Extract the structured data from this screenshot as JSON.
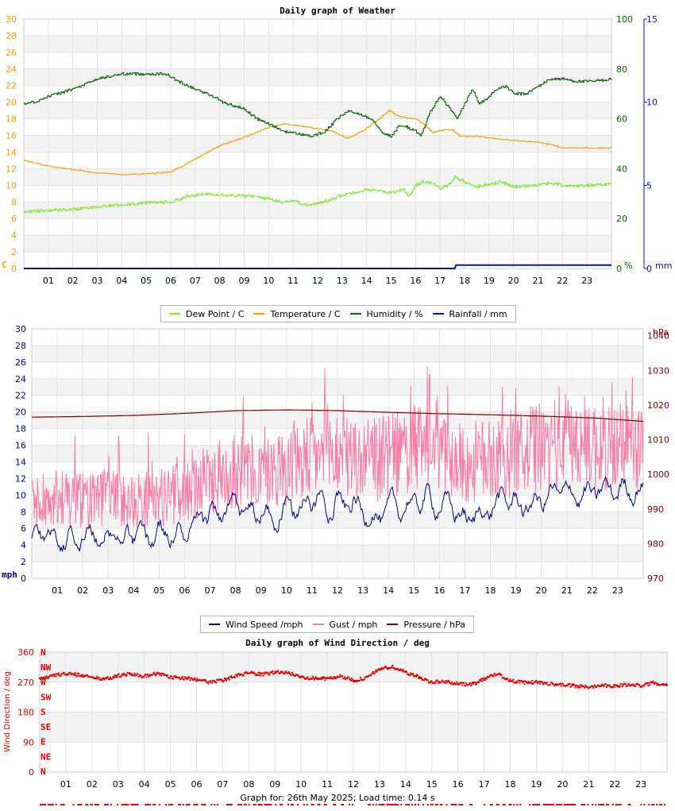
{
  "hours": [
    "01",
    "02",
    "03",
    "04",
    "05",
    "06",
    "07",
    "08",
    "09",
    "10",
    "11",
    "12",
    "13",
    "14",
    "15",
    "16",
    "17",
    "18",
    "19",
    "20",
    "21",
    "22",
    "23"
  ],
  "colors": {
    "dew": "#7ee532",
    "temp": "#f0a000",
    "hum": "#0b5e0b",
    "rain": "#1010a0",
    "wind": "#000080",
    "gust": "#f47ea8",
    "press": "#7a0000",
    "dir": "#e00000"
  },
  "footer": "Graph for: 26th May 2025; Load time: 0.14 s",
  "chart_data": [
    {
      "type": "line",
      "title": "Daily graph of Weather",
      "left_unit": "C",
      "left_ticks": [
        "0",
        "2",
        "4",
        "6",
        "8",
        "10",
        "12",
        "14",
        "16",
        "18",
        "20",
        "22",
        "24",
        "26",
        "28",
        "30"
      ],
      "left_range": [
        0,
        30
      ],
      "hum_unit": "%",
      "hum_ticks": [
        "0",
        "20",
        "40",
        "60",
        "80",
        "100"
      ],
      "hum_range": [
        0,
        100
      ],
      "rain_unit": "mm",
      "rain_ticks": [
        "0",
        "5",
        "10",
        "15"
      ],
      "rain_range": [
        0,
        15
      ],
      "x_range": [
        0,
        24
      ],
      "legend": [
        "Dew Point / C",
        "Temperature / C",
        "Humidity / %",
        "Rainfall / mm"
      ],
      "series": {
        "temperature": [
          [
            0,
            13.0
          ],
          [
            1,
            12.3
          ],
          [
            2,
            11.9
          ],
          [
            3,
            11.5
          ],
          [
            4,
            11.3
          ],
          [
            5,
            11.4
          ],
          [
            6,
            11.6
          ],
          [
            7,
            13.2
          ],
          [
            8,
            14.8
          ],
          [
            9,
            15.8
          ],
          [
            10,
            17.0
          ],
          [
            10.6,
            17.4
          ],
          [
            11.4,
            17.1
          ],
          [
            12,
            16.8
          ],
          [
            12.7,
            16.4
          ],
          [
            13.2,
            15.6
          ],
          [
            13.8,
            16.5
          ],
          [
            14.5,
            18.0
          ],
          [
            14.9,
            19.0
          ],
          [
            15.3,
            18.3
          ],
          [
            16,
            18.0
          ],
          [
            16.3,
            17.4
          ],
          [
            16.7,
            16.3
          ],
          [
            17,
            16.6
          ],
          [
            17.5,
            16.7
          ],
          [
            17.8,
            15.9
          ],
          [
            18.5,
            15.9
          ],
          [
            19,
            15.7
          ],
          [
            20,
            15.4
          ],
          [
            21,
            15.2
          ],
          [
            21.5,
            14.9
          ],
          [
            22,
            14.5
          ],
          [
            23,
            14.5
          ],
          [
            24,
            14.5
          ]
        ],
        "dew_point": [
          [
            0,
            6.8
          ],
          [
            1,
            7.0
          ],
          [
            2,
            7.1
          ],
          [
            3,
            7.4
          ],
          [
            4,
            7.7
          ],
          [
            5,
            7.9
          ],
          [
            6,
            8.0
          ],
          [
            6.6,
            8.6
          ],
          [
            7.5,
            9.0
          ],
          [
            8.5,
            8.8
          ],
          [
            9.3,
            8.7
          ],
          [
            10,
            8.4
          ],
          [
            10.5,
            8.0
          ],
          [
            11,
            8.2
          ],
          [
            11.5,
            7.6
          ],
          [
            12,
            7.8
          ],
          [
            12.5,
            8.3
          ],
          [
            13,
            8.8
          ],
          [
            13.5,
            9.2
          ],
          [
            14,
            9.5
          ],
          [
            14.5,
            9.3
          ],
          [
            15,
            9.1
          ],
          [
            15.5,
            9.6
          ],
          [
            15.7,
            8.5
          ],
          [
            16,
            10.0
          ],
          [
            16.3,
            10.5
          ],
          [
            16.6,
            10.3
          ],
          [
            17,
            9.6
          ],
          [
            17.3,
            10.0
          ],
          [
            17.6,
            11.0
          ],
          [
            18,
            10.4
          ],
          [
            18.5,
            9.8
          ],
          [
            19,
            10.2
          ],
          [
            19.5,
            10.4
          ],
          [
            20,
            9.8
          ],
          [
            21,
            10.1
          ],
          [
            21.5,
            10.3
          ],
          [
            22,
            10.0
          ],
          [
            22.5,
            9.9
          ],
          [
            23,
            10.0
          ],
          [
            24,
            10.2
          ]
        ],
        "humidity": [
          [
            0,
            66
          ],
          [
            0.5,
            67
          ],
          [
            1,
            69
          ],
          [
            1.7,
            71
          ],
          [
            2.3,
            73
          ],
          [
            3,
            76
          ],
          [
            3.5,
            77
          ],
          [
            4,
            78
          ],
          [
            5,
            78
          ],
          [
            5.8,
            78
          ],
          [
            6.3,
            75
          ],
          [
            7,
            72
          ],
          [
            7.7,
            69
          ],
          [
            8.3,
            66
          ],
          [
            9,
            64
          ],
          [
            9.5,
            60
          ],
          [
            10,
            58
          ],
          [
            10.6,
            55
          ],
          [
            11.2,
            54
          ],
          [
            11.8,
            53
          ],
          [
            12.3,
            55
          ],
          [
            12.8,
            60
          ],
          [
            13.2,
            63
          ],
          [
            13.7,
            62
          ],
          [
            14.2,
            60
          ],
          [
            14.7,
            54
          ],
          [
            15,
            53
          ],
          [
            15.3,
            57
          ],
          [
            15.6,
            57
          ],
          [
            16,
            55
          ],
          [
            16.2,
            53
          ],
          [
            16.6,
            63
          ],
          [
            17,
            69
          ],
          [
            17.4,
            64
          ],
          [
            17.7,
            60
          ],
          [
            18,
            66
          ],
          [
            18.3,
            72
          ],
          [
            18.6,
            66
          ],
          [
            18.9,
            68
          ],
          [
            19.3,
            72
          ],
          [
            19.7,
            73
          ],
          [
            20,
            70
          ],
          [
            20.5,
            70
          ],
          [
            21,
            73
          ],
          [
            21.5,
            76
          ],
          [
            22,
            76
          ],
          [
            22.6,
            75
          ],
          [
            23.2,
            75
          ],
          [
            24,
            76
          ]
        ],
        "rainfall": [
          [
            0,
            0
          ],
          [
            17.6,
            0
          ],
          [
            17.65,
            0.2
          ],
          [
            24,
            0.2
          ]
        ]
      }
    },
    {
      "type": "line",
      "title": "",
      "left_unit": "mph",
      "left_ticks": [
        "0",
        "2",
        "4",
        "6",
        "8",
        "10",
        "12",
        "14",
        "16",
        "18",
        "20",
        "22",
        "24",
        "26",
        "28",
        "30"
      ],
      "left_range": [
        0,
        30
      ],
      "right_unit": "hPa",
      "right_ticks": [
        "970",
        "980",
        "990",
        "1000",
        "1010",
        "1020",
        "1030",
        "1040"
      ],
      "right_range": [
        970,
        1042
      ],
      "x_range": [
        0,
        24
      ],
      "legend": [
        "Wind Speed /mph",
        "Gust / mph",
        "Pressure / hPa"
      ],
      "series": {
        "wind_speed": [
          [
            0,
            5.0
          ],
          [
            0.5,
            5.5
          ],
          [
            1,
            5.0
          ],
          [
            1.5,
            5.0
          ],
          [
            2,
            5.5
          ],
          [
            2.5,
            5.0
          ],
          [
            3,
            5.5
          ],
          [
            3.5,
            5.0
          ],
          [
            4,
            5.2
          ],
          [
            4.5,
            4.5
          ],
          [
            5,
            5.5
          ],
          [
            5.5,
            5.5
          ],
          [
            6,
            5.0
          ],
          [
            6.5,
            6.0
          ],
          [
            7,
            7.5
          ],
          [
            7.5,
            8.0
          ],
          [
            8,
            8.5
          ],
          [
            8.5,
            8.0
          ],
          [
            9,
            7.5
          ],
          [
            9.5,
            7.0
          ],
          [
            10,
            8.0
          ],
          [
            10.5,
            8.5
          ],
          [
            11,
            9.5
          ],
          [
            11.5,
            9.0
          ],
          [
            12,
            9.5
          ],
          [
            12.5,
            9.0
          ],
          [
            13,
            8.0
          ],
          [
            13.5,
            7.5
          ],
          [
            14,
            8.0
          ],
          [
            14.5,
            8.5
          ],
          [
            15,
            9.0
          ],
          [
            15.5,
            9.5
          ],
          [
            16,
            9.0
          ],
          [
            16.5,
            8.5
          ],
          [
            17,
            7.0
          ],
          [
            17.5,
            7.5
          ],
          [
            18,
            8.5
          ],
          [
            18.5,
            9.5
          ],
          [
            19,
            9.0
          ],
          [
            19.5,
            8.5
          ],
          [
            20,
            9.5
          ],
          [
            20.5,
            10.0
          ],
          [
            21,
            10.5
          ],
          [
            21.5,
            10.0
          ],
          [
            22,
            10.0
          ],
          [
            22.5,
            10.5
          ],
          [
            23,
            10.5
          ],
          [
            23.5,
            11.0
          ],
          [
            24,
            10.5
          ]
        ],
        "gust": [
          [
            0,
            9.0
          ],
          [
            1,
            9.2
          ],
          [
            2,
            9.0
          ],
          [
            3,
            9.5
          ],
          [
            4,
            9.0
          ],
          [
            5,
            9.3
          ],
          [
            6,
            10.0
          ],
          [
            7,
            11.5
          ],
          [
            8,
            12.5
          ],
          [
            9,
            12.0
          ],
          [
            10,
            13.0
          ],
          [
            11,
            14.0
          ],
          [
            12,
            14.5
          ],
          [
            13,
            13.5
          ],
          [
            14,
            14.0
          ],
          [
            15,
            15.0
          ],
          [
            16,
            15.0
          ],
          [
            17,
            13.0
          ],
          [
            18,
            14.0
          ],
          [
            19,
            14.5
          ],
          [
            20,
            15.0
          ],
          [
            21,
            16.0
          ],
          [
            22,
            15.5
          ],
          [
            23,
            15.5
          ],
          [
            24,
            15.0
          ]
        ],
        "pressure": [
          [
            0,
            1016.5
          ],
          [
            2,
            1016.7
          ],
          [
            4,
            1017.0
          ],
          [
            6,
            1017.6
          ],
          [
            8,
            1018.4
          ],
          [
            10,
            1018.6
          ],
          [
            12,
            1018.4
          ],
          [
            14,
            1017.9
          ],
          [
            16,
            1017.5
          ],
          [
            18,
            1017.2
          ],
          [
            20,
            1016.8
          ],
          [
            22,
            1016.3
          ],
          [
            24,
            1015.3
          ]
        ]
      }
    },
    {
      "type": "scatter",
      "title": "Daily graph of Wind Direction / deg",
      "ylabel": "Wind Direction / deg",
      "y_ticks": [
        "0",
        "90",
        "180",
        "270",
        "360"
      ],
      "y_range": [
        0,
        360
      ],
      "compass": [
        "N",
        "NW",
        "W",
        "SW",
        "S",
        "SE",
        "E",
        "NE",
        "N"
      ],
      "x_range": [
        0,
        24
      ],
      "series": {
        "direction": [
          [
            0,
            280
          ],
          [
            0.5,
            290
          ],
          [
            1,
            295
          ],
          [
            1.5,
            292
          ],
          [
            2,
            285
          ],
          [
            2.5,
            278
          ],
          [
            3,
            290
          ],
          [
            3.5,
            295
          ],
          [
            4,
            288
          ],
          [
            4.5,
            296
          ],
          [
            5,
            285
          ],
          [
            5.5,
            282
          ],
          [
            6,
            278
          ],
          [
            6.5,
            270
          ],
          [
            7,
            275
          ],
          [
            7.5,
            288
          ],
          [
            8,
            298
          ],
          [
            8.5,
            292
          ],
          [
            9,
            300
          ],
          [
            9.5,
            298
          ],
          [
            10,
            285
          ],
          [
            10.5,
            282
          ],
          [
            11,
            280
          ],
          [
            11.5,
            288
          ],
          [
            12,
            275
          ],
          [
            12.5,
            282
          ],
          [
            13,
            310
          ],
          [
            13.5,
            315
          ],
          [
            14,
            300
          ],
          [
            14.5,
            285
          ],
          [
            15,
            270
          ],
          [
            15.5,
            272
          ],
          [
            16,
            265
          ],
          [
            16.5,
            262
          ],
          [
            17,
            280
          ],
          [
            17.5,
            295
          ],
          [
            18,
            275
          ],
          [
            18.5,
            268
          ],
          [
            19,
            270
          ],
          [
            19.5,
            265
          ],
          [
            20,
            262
          ],
          [
            20.5,
            258
          ],
          [
            21,
            255
          ],
          [
            21.5,
            262
          ],
          [
            22,
            258
          ],
          [
            22.5,
            262
          ],
          [
            23,
            260
          ],
          [
            23.5,
            268
          ],
          [
            24,
            262
          ]
        ]
      }
    }
  ]
}
